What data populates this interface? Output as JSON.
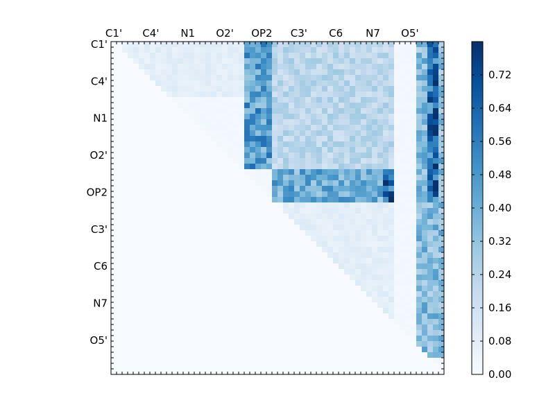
{
  "chart_data": {
    "type": "heatmap",
    "title": "",
    "xlabel": "",
    "ylabel": "",
    "n": 60,
    "atom_labels": [
      "C1'",
      "C4'",
      "N1",
      "O2'",
      "OP2",
      "C3'",
      "C6",
      "N7",
      "O5'"
    ],
    "x_tick_labels": [
      "C1'",
      "C4'",
      "N1",
      "O2'",
      "OP2",
      "C3'",
      "C6",
      "N7",
      "O5'"
    ],
    "y_tick_labels": [
      "C1'",
      "C4'",
      "N1",
      "O2'",
      "OP2",
      "C3'",
      "C6",
      "N7",
      "O5'"
    ],
    "tick_label_start_index": 0,
    "tick_label_step": 6.67,
    "colorbar": {
      "min": 0.0,
      "max": 0.8,
      "ticks": [
        "0.00",
        "0.08",
        "0.16",
        "0.24",
        "0.32",
        "0.40",
        "0.48",
        "0.56",
        "0.64",
        "0.72"
      ],
      "colormap": [
        "#f7fbff",
        "#deebf7",
        "#c6dbef",
        "#9ecae1",
        "#6baed6",
        "#4292c6",
        "#2171b5",
        "#08519c",
        "#08306b"
      ]
    },
    "structure": "upper-triangular matrix; lower triangle is 0",
    "blocks": [
      {
        "name": "top-left light band",
        "rows": [
          0,
          10
        ],
        "cols": [
          2,
          24
        ],
        "value": 0.08
      },
      {
        "name": "OP2 dark columns (upper)",
        "rows": [
          0,
          23
        ],
        "cols": [
          24,
          29
        ],
        "value": 0.45
      },
      {
        "name": "mid-right block (upper)",
        "rows": [
          0,
          23
        ],
        "cols": [
          29,
          51
        ],
        "value": 0.22
      },
      {
        "name": "OP2 band",
        "rows": [
          23,
          29
        ],
        "cols": [
          29,
          50
        ],
        "value": 0.4
      },
      {
        "name": "OP2 dark hotspot",
        "rows": [
          23,
          29
        ],
        "cols": [
          49,
          51
        ],
        "value": 0.62
      },
      {
        "name": "lower-right light triangle",
        "rows": [
          29,
          52
        ],
        "cols": [
          31,
          51
        ],
        "value": 0.08
      },
      {
        "name": "O5' right columns",
        "rows": [
          0,
          57
        ],
        "cols": [
          55,
          60
        ],
        "value": 0.35
      },
      {
        "name": "rightmost dark column",
        "rows": [
          0,
          29
        ],
        "cols": [
          57,
          59
        ],
        "value": 0.6
      }
    ]
  }
}
